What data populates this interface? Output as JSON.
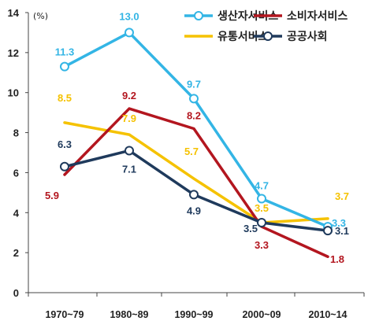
{
  "chart_data": {
    "type": "line",
    "unit_label": "(%)",
    "categories": [
      "1970~79",
      "1980~89",
      "1990~99",
      "2000~09",
      "2010~14"
    ],
    "ylim": [
      0,
      14
    ],
    "yticks": [
      0,
      2,
      4,
      6,
      8,
      10,
      12,
      14
    ],
    "legend_position": "top-right",
    "series": [
      {
        "name": "생산자서비스",
        "color": "#33b5e5",
        "marker": "open-circle",
        "values": [
          11.3,
          13.0,
          9.7,
          4.7,
          3.3
        ],
        "labels": [
          "11.3",
          "13.0",
          "9.7",
          "4.7",
          "3.3"
        ]
      },
      {
        "name": "소비자서비스",
        "color": "#b3161f",
        "marker": "none",
        "values": [
          5.9,
          9.2,
          8.2,
          3.3,
          1.8
        ],
        "labels": [
          "5.9",
          "9.2",
          "8.2",
          "3.3",
          "1.8"
        ]
      },
      {
        "name": "유통서비스",
        "color": "#f5c200",
        "marker": "none",
        "values": [
          8.5,
          7.9,
          5.7,
          3.5,
          3.7
        ],
        "labels": [
          "8.5",
          "7.9",
          "5.7",
          "3.5",
          "3.7"
        ]
      },
      {
        "name": "공공사회",
        "color": "#1f3a5c",
        "marker": "open-circle",
        "values": [
          6.3,
          7.1,
          4.9,
          3.5,
          3.1
        ],
        "labels": [
          "6.3",
          "7.1",
          "4.9",
          "3.5",
          "3.1"
        ]
      }
    ]
  }
}
